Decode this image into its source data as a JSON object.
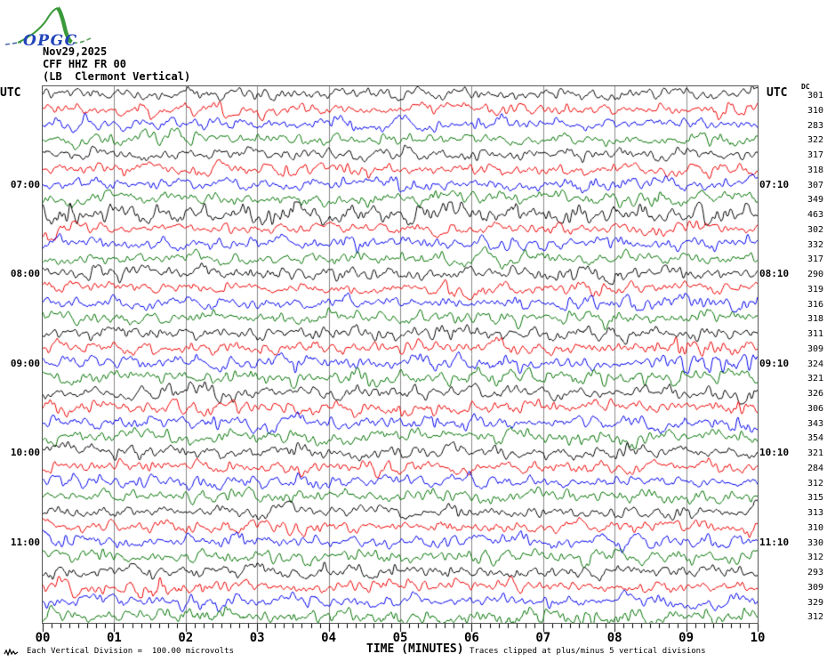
{
  "logo": {
    "text": "OPGC",
    "green": "#3a9a3a",
    "blue": "#2244bb"
  },
  "header": {
    "date": "Nov29,2025",
    "station": "CFF HHZ FR 00",
    "description": "(LB  Clermont Vertical)"
  },
  "axes": {
    "utc_left": "UTC",
    "utc_right": "UTC",
    "dc_header": "DC"
  },
  "footer": {
    "left": "Each Vertical Division =  100.00 microvolts",
    "center": "TIME (MINUTES)",
    "right": "Traces clipped at plus/minus 5 vertical divisions"
  },
  "colors": {
    "trace_black": "#000000",
    "trace_red": "#ee0000",
    "trace_blue": "#0000ee",
    "trace_green": "#007200",
    "grid": "#8a8a8a",
    "border": "#555555",
    "tick": "#000000"
  },
  "chart_data": {
    "type": "line",
    "subtype": "helicorder-seismogram",
    "title": "CFF HHZ FR 00 (LB Clermont Vertical) Nov29,2025",
    "xlabel": "TIME (MINUTES)",
    "x_range": [
      0,
      10
    ],
    "x_tick_labels": [
      "00",
      "01",
      "02",
      "03",
      "04",
      "05",
      "06",
      "07",
      "08",
      "09",
      "10"
    ],
    "minor_divisions_per_minute": 8,
    "minutes_per_row": 10,
    "grid": true,
    "scale_note": "Each Vertical Division =  100.00 microvolts",
    "clip_note": "Traces clipped at plus/minus 5 vertical divisions",
    "rows": [
      {
        "color": "black",
        "dc": 301,
        "left_label": "",
        "right_label": "",
        "amp": 5.5
      },
      {
        "color": "red",
        "dc": 310,
        "left_label": "",
        "right_label": "",
        "amp": 6.0
      },
      {
        "color": "blue",
        "dc": 283,
        "left_label": "",
        "right_label": "",
        "amp": 6.0
      },
      {
        "color": "green",
        "dc": 322,
        "left_label": "",
        "right_label": "",
        "amp": 6.0
      },
      {
        "color": "black",
        "dc": 317,
        "left_label": "",
        "right_label": "",
        "amp": 5.5
      },
      {
        "color": "red",
        "dc": 318,
        "left_label": "",
        "right_label": "",
        "amp": 6.0
      },
      {
        "color": "blue",
        "dc": 307,
        "left_label": "07:00",
        "right_label": "07:10",
        "amp": 6.0
      },
      {
        "color": "green",
        "dc": 349,
        "left_label": "",
        "right_label": "",
        "amp": 6.5
      },
      {
        "color": "black",
        "dc": 463,
        "left_label": "",
        "right_label": "",
        "amp": 9.5
      },
      {
        "color": "red",
        "dc": 302,
        "left_label": "",
        "right_label": "",
        "amp": 6.0
      },
      {
        "color": "blue",
        "dc": 332,
        "left_label": "",
        "right_label": "",
        "amp": 6.0
      },
      {
        "color": "green",
        "dc": 317,
        "left_label": "",
        "right_label": "",
        "amp": 6.0
      },
      {
        "color": "black",
        "dc": 290,
        "left_label": "08:00",
        "right_label": "08:10",
        "amp": 6.5
      },
      {
        "color": "red",
        "dc": 319,
        "left_label": "",
        "right_label": "",
        "amp": 6.0
      },
      {
        "color": "blue",
        "dc": 316,
        "left_label": "",
        "right_label": "",
        "amp": 6.0
      },
      {
        "color": "green",
        "dc": 318,
        "left_label": "",
        "right_label": "",
        "amp": 6.0
      },
      {
        "color": "black",
        "dc": 311,
        "left_label": "",
        "right_label": "",
        "amp": 6.0
      },
      {
        "color": "red",
        "dc": 309,
        "left_label": "",
        "right_label": "",
        "amp": 6.0
      },
      {
        "color": "blue",
        "dc": 324,
        "left_label": "09:00",
        "right_label": "09:10",
        "amp": 7.0
      },
      {
        "color": "green",
        "dc": 321,
        "left_label": "",
        "right_label": "",
        "amp": 7.0
      },
      {
        "color": "black",
        "dc": 326,
        "left_label": "",
        "right_label": "",
        "amp": 7.0
      },
      {
        "color": "red",
        "dc": 306,
        "left_label": "",
        "right_label": "",
        "amp": 6.5
      },
      {
        "color": "blue",
        "dc": 343,
        "left_label": "",
        "right_label": "",
        "amp": 7.0
      },
      {
        "color": "green",
        "dc": 354,
        "left_label": "",
        "right_label": "",
        "amp": 7.0
      },
      {
        "color": "black",
        "dc": 321,
        "left_label": "10:00",
        "right_label": "10:10",
        "amp": 6.5
      },
      {
        "color": "red",
        "dc": 284,
        "left_label": "",
        "right_label": "",
        "amp": 6.0
      },
      {
        "color": "blue",
        "dc": 312,
        "left_label": "",
        "right_label": "",
        "amp": 6.0
      },
      {
        "color": "green",
        "dc": 315,
        "left_label": "",
        "right_label": "",
        "amp": 6.0
      },
      {
        "color": "black",
        "dc": 313,
        "left_label": "",
        "right_label": "",
        "amp": 6.0
      },
      {
        "color": "red",
        "dc": 310,
        "left_label": "",
        "right_label": "",
        "amp": 6.0
      },
      {
        "color": "blue",
        "dc": 330,
        "left_label": "11:00",
        "right_label": "11:10",
        "amp": 6.5
      },
      {
        "color": "green",
        "dc": 312,
        "left_label": "",
        "right_label": "",
        "amp": 6.5
      },
      {
        "color": "black",
        "dc": 293,
        "left_label": "",
        "right_label": "",
        "amp": 6.0
      },
      {
        "color": "red",
        "dc": 309,
        "left_label": "",
        "right_label": "",
        "amp": 6.5
      },
      {
        "color": "blue",
        "dc": 329,
        "left_label": "",
        "right_label": "",
        "amp": 6.5
      },
      {
        "color": "green",
        "dc": 312,
        "left_label": "",
        "right_label": "",
        "amp": 7.0
      }
    ]
  }
}
